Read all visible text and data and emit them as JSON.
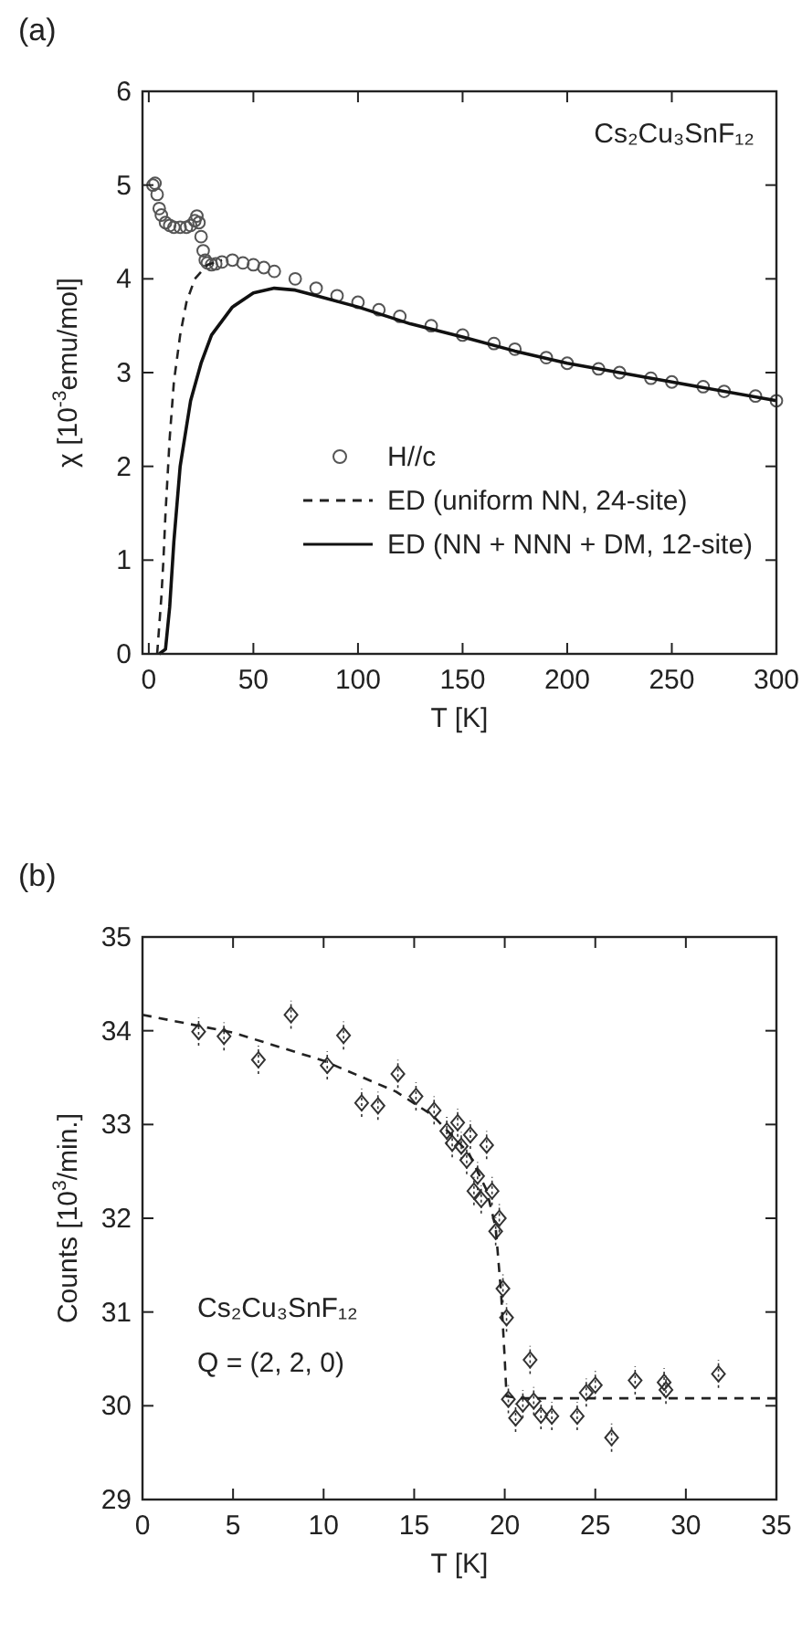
{
  "chart_data": [
    {
      "type": "line",
      "title": "(a)",
      "xlabel": "T [K]",
      "ylabel": "χ [10$^{-3}$emu/mol]",
      "xlim": [
        -3,
        300
      ],
      "ylim": [
        0,
        6
      ],
      "xticks": [
        0,
        50,
        100,
        150,
        200,
        250,
        300
      ],
      "yticks": [
        0,
        1,
        2,
        3,
        4,
        5,
        6
      ],
      "legend": "bottom right",
      "annotations": [
        "Cs₂Cu₃SnF₁₂"
      ],
      "series": [
        {
          "name": "H//c",
          "type": "scatter",
          "marker": "circle",
          "color": "#555555",
          "x": [
            2,
            3,
            4,
            5,
            6,
            8,
            10,
            12,
            15,
            18,
            20,
            22,
            23,
            24,
            25,
            26,
            27,
            28,
            30,
            32,
            35,
            40,
            45,
            50,
            55,
            60,
            70,
            80,
            90,
            100,
            110,
            120,
            135,
            150,
            165,
            175,
            190,
            200,
            215,
            225,
            240,
            250,
            265,
            275,
            290,
            300
          ],
          "values": [
            5.0,
            5.02,
            4.9,
            4.75,
            4.68,
            4.6,
            4.57,
            4.55,
            4.55,
            4.55,
            4.57,
            4.62,
            4.67,
            4.6,
            4.45,
            4.3,
            4.2,
            4.17,
            4.15,
            4.16,
            4.18,
            4.2,
            4.17,
            4.15,
            4.12,
            4.08,
            4.0,
            3.9,
            3.82,
            3.75,
            3.67,
            3.6,
            3.5,
            3.4,
            3.31,
            3.25,
            3.16,
            3.1,
            3.04,
            3.0,
            2.94,
            2.9,
            2.85,
            2.8,
            2.75,
            2.7
          ]
        },
        {
          "name": "ED (uniform NN, 24-site)",
          "line_style": "dashed",
          "marker": "none",
          "color": "#222222",
          "x": [
            4,
            5,
            6,
            7,
            8,
            10,
            12,
            15,
            18,
            22,
            28,
            35
          ],
          "values": [
            0,
            0.3,
            0.6,
            1.0,
            1.5,
            2.3,
            2.9,
            3.4,
            3.75,
            4.0,
            4.15,
            4.2
          ]
        },
        {
          "name": "ED (NN + NNN + DM, 12-site)",
          "line_style": "solid",
          "marker": "none",
          "color": "#111111",
          "x": [
            5,
            8,
            10,
            12,
            15,
            20,
            25,
            30,
            40,
            50,
            60,
            70,
            80,
            100,
            125,
            150,
            175,
            200,
            250,
            300
          ],
          "values": [
            0,
            0.05,
            0.5,
            1.2,
            2.0,
            2.7,
            3.1,
            3.4,
            3.7,
            3.85,
            3.9,
            3.88,
            3.82,
            3.7,
            3.52,
            3.38,
            3.23,
            3.1,
            2.9,
            2.7
          ]
        }
      ]
    },
    {
      "type": "scatter",
      "title": "(b)",
      "xlabel": "T [K]",
      "ylabel": "Counts [10$^{3}$/min.]",
      "xlim": [
        0,
        35
      ],
      "ylim": [
        29,
        35
      ],
      "xticks": [
        0,
        5,
        10,
        15,
        20,
        25,
        30,
        35
      ],
      "yticks": [
        29,
        30,
        31,
        32,
        33,
        34,
        35
      ],
      "annotations": [
        "Cs₂Cu₃SnF₁₂",
        "Q = (2, 2, 0)"
      ],
      "series": [
        {
          "marker": "diamond",
          "color": "#333333",
          "x": [
            3.1,
            4.5,
            6.4,
            8.2,
            10.2,
            11.1,
            12.1,
            13.0,
            14.1,
            15.1,
            16.1,
            16.8,
            17.1,
            17.4,
            17.6,
            17.9,
            18.1,
            18.3,
            18.5,
            18.7,
            19.0,
            19.3,
            19.5,
            19.7,
            19.9,
            20.1,
            20.2,
            20.6,
            21.0,
            21.4,
            21.6,
            22.0,
            22.6,
            24.0,
            24.5,
            25.0,
            25.9,
            27.2,
            28.8,
            28.9,
            31.8
          ],
          "values": [
            33.99,
            33.94,
            33.69,
            34.17,
            33.63,
            33.95,
            33.23,
            33.2,
            33.54,
            33.3,
            33.15,
            32.93,
            32.8,
            33.02,
            32.77,
            32.62,
            32.89,
            32.29,
            32.45,
            32.2,
            32.78,
            32.29,
            31.86,
            32.0,
            31.25,
            30.94,
            30.07,
            29.87,
            30.02,
            30.49,
            30.05,
            29.9,
            29.89,
            29.89,
            30.14,
            30.22,
            29.66,
            30.27,
            30.25,
            30.17,
            30.34
          ],
          "errors": [
            0.15,
            0.15,
            0.15,
            0.15,
            0.15,
            0.15,
            0.15,
            0.15,
            0.15,
            0.15,
            0.15,
            0.15,
            0.15,
            0.15,
            0.15,
            0.15,
            0.15,
            0.15,
            0.15,
            0.15,
            0.15,
            0.15,
            0.15,
            0.15,
            0.15,
            0.15,
            0.15,
            0.15,
            0.15,
            0.15,
            0.15,
            0.15,
            0.15,
            0.15,
            0.15,
            0.15,
            0.15,
            0.15,
            0.15,
            0.15,
            0.15
          ]
        },
        {
          "type": "line",
          "line_style": "dashed",
          "marker": "none",
          "color": "#222222",
          "x": [
            0,
            5,
            10,
            14,
            16,
            18,
            19,
            19.5,
            19.8,
            20,
            20.1,
            21,
            35
          ],
          "values": [
            34.17,
            33.98,
            33.68,
            33.35,
            33.1,
            32.7,
            32.3,
            31.9,
            31.2,
            30.5,
            30.1,
            30.08,
            30.08
          ]
        }
      ]
    }
  ]
}
